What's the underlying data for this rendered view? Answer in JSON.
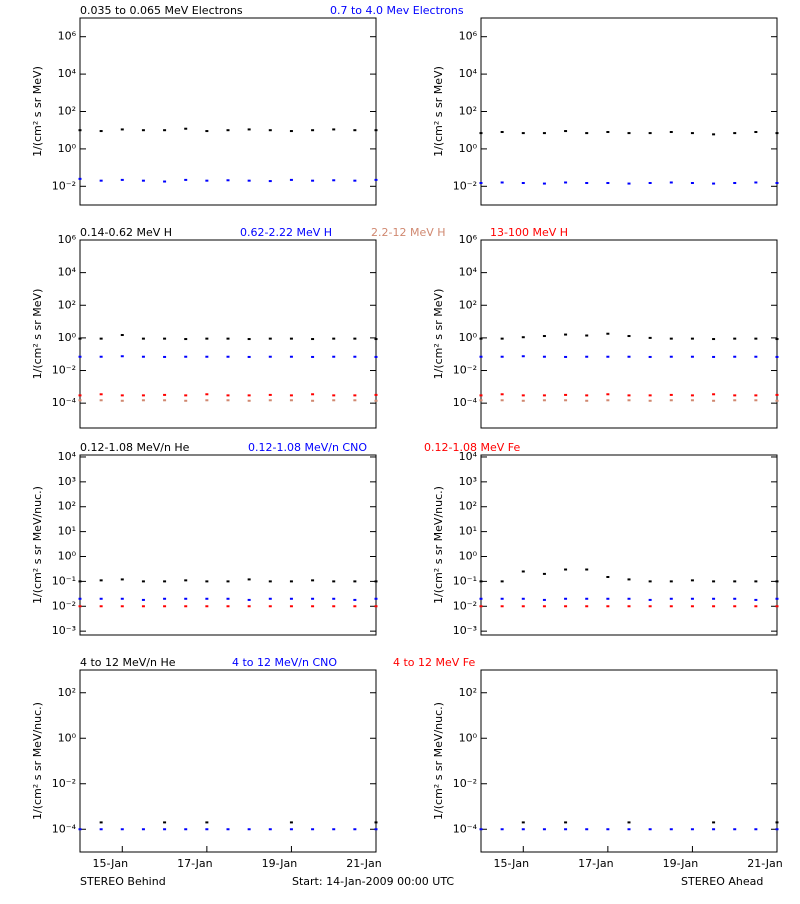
{
  "chart_data": [
    {
      "type": "scatter",
      "log_y": true,
      "ylabel": "1/(cm² s sr MeV)",
      "xlim": [
        0,
        7
      ],
      "ylim": [
        0.001,
        10000000
      ],
      "yticks": [
        {
          "value": 1000000,
          "label": "10⁶"
        },
        {
          "value": 10000,
          "label": "10⁴"
        },
        {
          "value": 100,
          "label": "10²"
        },
        {
          "value": 1,
          "label": "10⁰"
        },
        {
          "value": 0.01,
          "label": "10⁻²"
        }
      ],
      "x": [
        0,
        0.5,
        1,
        1.5,
        2,
        2.5,
        3,
        3.5,
        4,
        4.5,
        5,
        5.5,
        6,
        6.5,
        7
      ],
      "series": [
        {
          "name": "0.035 to 0.065 MeV Electrons",
          "color": "#000000",
          "values": [
            10,
            9,
            11,
            10,
            10,
            12,
            9,
            10,
            11,
            10,
            9,
            10,
            11,
            10,
            10
          ]
        },
        {
          "name": "0.7 to 4.0 Mev Electrons",
          "color": "#0000ff",
          "values": [
            0.025,
            0.02,
            0.022,
            0.02,
            0.018,
            0.022,
            0.02,
            0.021,
            0.02,
            0.019,
            0.022,
            0.02,
            0.021,
            0.02,
            0.022
          ]
        }
      ]
    },
    {
      "type": "scatter",
      "log_y": true,
      "ylabel": "1/(cm² s sr MeV)",
      "xlim": [
        0,
        7
      ],
      "ylim": [
        0.001,
        10000000
      ],
      "yticks": [
        {
          "value": 1000000,
          "label": "10⁶"
        },
        {
          "value": 10000,
          "label": "10⁴"
        },
        {
          "value": 100,
          "label": "10²"
        },
        {
          "value": 1,
          "label": "10⁰"
        },
        {
          "value": 0.01,
          "label": "10⁻²"
        }
      ],
      "x": [
        0,
        0.5,
        1,
        1.5,
        2,
        2.5,
        3,
        3.5,
        4,
        4.5,
        5,
        5.5,
        6,
        6.5,
        7
      ],
      "series": [
        {
          "color": "#000000",
          "values": [
            7,
            8,
            7,
            7,
            9,
            7,
            8,
            7,
            7,
            8,
            7,
            6,
            7,
            8,
            7
          ]
        },
        {
          "color": "#0000ff",
          "values": [
            0.015,
            0.016,
            0.015,
            0.014,
            0.016,
            0.015,
            0.015,
            0.014,
            0.015,
            0.016,
            0.015,
            0.014,
            0.015,
            0.016,
            0.015
          ]
        }
      ]
    },
    {
      "type": "scatter",
      "log_y": true,
      "ylabel": "1/(cm² s sr MeV)",
      "xlim": [
        0,
        7
      ],
      "ylim": [
        3e-06,
        1000000
      ],
      "yticks": [
        {
          "value": 1000000,
          "label": "10⁶"
        },
        {
          "value": 10000,
          "label": "10⁴"
        },
        {
          "value": 100,
          "label": "10²"
        },
        {
          "value": 1,
          "label": "10⁰"
        },
        {
          "value": 0.01,
          "label": "10⁻²"
        },
        {
          "value": 0.0001,
          "label": "10⁻⁴"
        }
      ],
      "x": [
        0,
        0.5,
        1,
        1.5,
        2,
        2.5,
        3,
        3.5,
        4,
        4.5,
        5,
        5.5,
        6,
        6.5,
        7
      ],
      "series": [
        {
          "name": "0.14-0.62 MeV H",
          "color": "#000000",
          "values": [
            0.9,
            0.9,
            1.5,
            0.9,
            0.9,
            0.85,
            0.9,
            0.9,
            0.85,
            0.9,
            0.9,
            0.85,
            0.9,
            0.9,
            0.85
          ]
        },
        {
          "name": "0.62-2.22 MeV H",
          "color": "#0000ff",
          "values": [
            0.07,
            0.07,
            0.075,
            0.07,
            0.068,
            0.07,
            0.07,
            0.07,
            0.068,
            0.07,
            0.07,
            0.068,
            0.07,
            0.07,
            0.068
          ]
        },
        {
          "name": "2.2-12 MeV H",
          "color": "#d08870",
          "values": [
            0.00015,
            0.00015,
            0.00014,
            0.00015,
            0.00015,
            0.00014,
            0.00015,
            0.00015,
            0.00014,
            0.00015,
            0.00015,
            0.00014,
            0.00015,
            0.00015,
            0.00014
          ]
        },
        {
          "name": "13-100 MeV H",
          "color": "#ff0000",
          "values": [
            0.0003,
            0.00035,
            0.0003,
            0.0003,
            0.00032,
            0.0003,
            0.00035,
            0.0003,
            0.0003,
            0.00032,
            0.0003,
            0.00035,
            0.0003,
            0.0003,
            0.00032
          ]
        }
      ]
    },
    {
      "type": "scatter",
      "log_y": true,
      "ylabel": "1/(cm² s sr MeV)",
      "xlim": [
        0,
        7
      ],
      "ylim": [
        3e-06,
        1000000
      ],
      "yticks": [
        {
          "value": 1000000,
          "label": "10⁶"
        },
        {
          "value": 10000,
          "label": "10⁴"
        },
        {
          "value": 100,
          "label": "10²"
        },
        {
          "value": 1,
          "label": "10⁰"
        },
        {
          "value": 0.01,
          "label": "10⁻²"
        },
        {
          "value": 0.0001,
          "label": "10⁻⁴"
        }
      ],
      "x": [
        0,
        0.5,
        1,
        1.5,
        2,
        2.5,
        3,
        3.5,
        4,
        4.5,
        5,
        5.5,
        6,
        6.5,
        7
      ],
      "series": [
        {
          "color": "#000000",
          "values": [
            0.9,
            0.9,
            1.1,
            1.3,
            1.6,
            1.4,
            1.8,
            1.3,
            1.0,
            0.9,
            0.9,
            0.85,
            0.9,
            0.9,
            0.85
          ]
        },
        {
          "color": "#0000ff",
          "values": [
            0.07,
            0.07,
            0.075,
            0.07,
            0.068,
            0.07,
            0.07,
            0.07,
            0.068,
            0.07,
            0.07,
            0.068,
            0.07,
            0.07,
            0.068
          ]
        },
        {
          "color": "#d08870",
          "values": [
            0.00015,
            0.00015,
            0.00014,
            0.00015,
            0.00015,
            0.00014,
            0.00015,
            0.00015,
            0.00014,
            0.00015,
            0.00015,
            0.00014,
            0.00015,
            0.00015,
            0.00014
          ]
        },
        {
          "color": "#ff0000",
          "values": [
            0.0003,
            0.00035,
            0.0003,
            0.0003,
            0.00032,
            0.0003,
            0.00035,
            0.0003,
            0.0003,
            0.00032,
            0.0003,
            0.00035,
            0.0003,
            0.0003,
            0.00032
          ]
        }
      ]
    },
    {
      "type": "scatter",
      "log_y": true,
      "ylabel": "1/(cm² s sr MeV/nuc.)",
      "xlim": [
        0,
        7
      ],
      "ylim": [
        0.0007,
        12000
      ],
      "yticks": [
        {
          "value": 10000,
          "label": "10⁴"
        },
        {
          "value": 1000,
          "label": "10³"
        },
        {
          "value": 100,
          "label": "10²"
        },
        {
          "value": 10,
          "label": "10¹"
        },
        {
          "value": 1,
          "label": "10⁰"
        },
        {
          "value": 0.1,
          "label": "10⁻¹"
        },
        {
          "value": 0.01,
          "label": "10⁻²"
        },
        {
          "value": 0.001,
          "label": "10⁻³"
        }
      ],
      "x": [
        0,
        0.5,
        1,
        1.5,
        2,
        2.5,
        3,
        3.5,
        4,
        4.5,
        5,
        5.5,
        6,
        6.5,
        7
      ],
      "series": [
        {
          "name": "0.12-1.08 MeV/n He",
          "color": "#000000",
          "values": [
            0.1,
            0.11,
            0.12,
            0.1,
            0.1,
            0.11,
            0.1,
            0.1,
            0.12,
            0.1,
            0.1,
            0.11,
            0.1,
            0.1,
            0.1
          ]
        },
        {
          "name": "0.12-1.08 MeV/n CNO",
          "color": "#0000ff",
          "values": [
            0.02,
            0.02,
            0.02,
            0.018,
            0.02,
            0.02,
            0.02,
            0.02,
            0.018,
            0.02,
            0.02,
            0.02,
            0.02,
            0.018,
            0.02
          ]
        },
        {
          "name": "0.12-1.08 MeV Fe",
          "color": "#ff0000",
          "values": [
            0.01,
            0.01,
            0.01,
            0.01,
            0.01,
            0.01,
            0.01,
            0.01,
            0.01,
            0.01,
            0.01,
            0.01,
            0.01,
            0.01,
            0.01
          ]
        }
      ]
    },
    {
      "type": "scatter",
      "log_y": true,
      "ylabel": "1/(cm² s sr MeV/nuc.)",
      "xlim": [
        0,
        7
      ],
      "ylim": [
        0.0007,
        12000
      ],
      "yticks": [
        {
          "value": 10000,
          "label": "10⁴"
        },
        {
          "value": 1000,
          "label": "10³"
        },
        {
          "value": 100,
          "label": "10²"
        },
        {
          "value": 10,
          "label": "10¹"
        },
        {
          "value": 1,
          "label": "10⁰"
        },
        {
          "value": 0.1,
          "label": "10⁻¹"
        },
        {
          "value": 0.01,
          "label": "10⁻²"
        },
        {
          "value": 0.001,
          "label": "10⁻³"
        }
      ],
      "x": [
        0,
        0.5,
        1,
        1.5,
        2,
        2.5,
        3,
        3.5,
        4,
        4.5,
        5,
        5.5,
        6,
        6.5,
        7
      ],
      "series": [
        {
          "color": "#000000",
          "values": [
            0.1,
            0.1,
            0.25,
            0.2,
            0.3,
            0.3,
            0.15,
            0.12,
            0.1,
            0.1,
            0.11,
            0.1,
            0.1,
            0.1,
            0.1
          ]
        },
        {
          "color": "#0000ff",
          "values": [
            0.02,
            0.02,
            0.02,
            0.018,
            0.02,
            0.02,
            0.02,
            0.02,
            0.018,
            0.02,
            0.02,
            0.02,
            0.02,
            0.018,
            0.02
          ]
        },
        {
          "color": "#ff0000",
          "values": [
            0.01,
            0.01,
            0.01,
            0.01,
            0.01,
            0.01,
            0.01,
            0.01,
            0.01,
            0.01,
            0.01,
            0.01,
            0.01,
            0.01,
            0.01
          ]
        }
      ]
    },
    {
      "type": "scatter",
      "log_y": true,
      "ylabel": "1/(cm² s sr MeV/nuc.)",
      "xlim": [
        0,
        7
      ],
      "ylim": [
        1e-05,
        1000
      ],
      "yticks": [
        {
          "value": 100,
          "label": "10²"
        },
        {
          "value": 1,
          "label": "10⁰"
        },
        {
          "value": 0.01,
          "label": "10⁻²"
        },
        {
          "value": 0.0001,
          "label": "10⁻⁴"
        }
      ],
      "xticks": [
        {
          "value": 1,
          "label": "15-Jan"
        },
        {
          "value": 3,
          "label": "17-Jan"
        },
        {
          "value": 5,
          "label": "19-Jan"
        },
        {
          "value": 7,
          "label": "21-Jan"
        }
      ],
      "x": [
        0,
        0.5,
        1,
        1.5,
        2,
        2.5,
        3,
        3.5,
        4,
        4.5,
        5,
        5.5,
        6,
        6.5,
        7
      ],
      "series": [
        {
          "name": "4 to 12 MeV/n He",
          "color": "#000000",
          "values": [
            null,
            0.0002,
            null,
            null,
            0.0002,
            null,
            0.0002,
            null,
            null,
            null,
            0.0002,
            null,
            null,
            null,
            0.0002
          ]
        },
        {
          "name": "4 to 12 MeV/n CNO",
          "color": "#0000ff",
          "values": [
            0.0001,
            0.0001,
            0.0001,
            0.0001,
            0.0001,
            0.0001,
            0.0001,
            0.0001,
            0.0001,
            0.0001,
            0.0001,
            0.0001,
            0.0001,
            0.0001,
            0.0001
          ]
        },
        {
          "name": "4 to 12 MeV Fe",
          "color": "#ff0000",
          "values": [
            null,
            null,
            null,
            null,
            null,
            null,
            null,
            null,
            null,
            null,
            null,
            null,
            null,
            null,
            null
          ]
        }
      ]
    },
    {
      "type": "scatter",
      "log_y": true,
      "ylabel": "1/(cm² s sr MeV/nuc.)",
      "xlim": [
        0,
        7
      ],
      "ylim": [
        1e-05,
        1000
      ],
      "yticks": [
        {
          "value": 100,
          "label": "10²"
        },
        {
          "value": 1,
          "label": "10⁰"
        },
        {
          "value": 0.01,
          "label": "10⁻²"
        },
        {
          "value": 0.0001,
          "label": "10⁻⁴"
        }
      ],
      "xticks": [
        {
          "value": 1,
          "label": "15-Jan"
        },
        {
          "value": 3,
          "label": "17-Jan"
        },
        {
          "value": 5,
          "label": "19-Jan"
        },
        {
          "value": 7,
          "label": "21-Jan"
        }
      ],
      "x": [
        0,
        0.5,
        1,
        1.5,
        2,
        2.5,
        3,
        3.5,
        4,
        4.5,
        5,
        5.5,
        6,
        6.5,
        7
      ],
      "series": [
        {
          "color": "#000000",
          "values": [
            null,
            null,
            0.0002,
            null,
            0.0002,
            null,
            null,
            0.0002,
            null,
            null,
            null,
            0.0002,
            null,
            null,
            0.0002
          ]
        },
        {
          "color": "#0000ff",
          "values": [
            0.0001,
            0.0001,
            0.0001,
            0.0001,
            0.0001,
            0.0001,
            0.0001,
            0.0001,
            0.0001,
            0.0001,
            0.0001,
            0.0001,
            0.0001,
            0.0001,
            0.0001
          ]
        },
        {
          "color": "#ff0000",
          "values": [
            null,
            null,
            null,
            null,
            null,
            null,
            null,
            null,
            null,
            null,
            null,
            null,
            null,
            null,
            null
          ]
        }
      ]
    }
  ],
  "footer": {
    "left": "STEREO Behind",
    "center": "Start: 14-Jan-2009 00:00 UTC",
    "right": "STEREO Ahead"
  }
}
